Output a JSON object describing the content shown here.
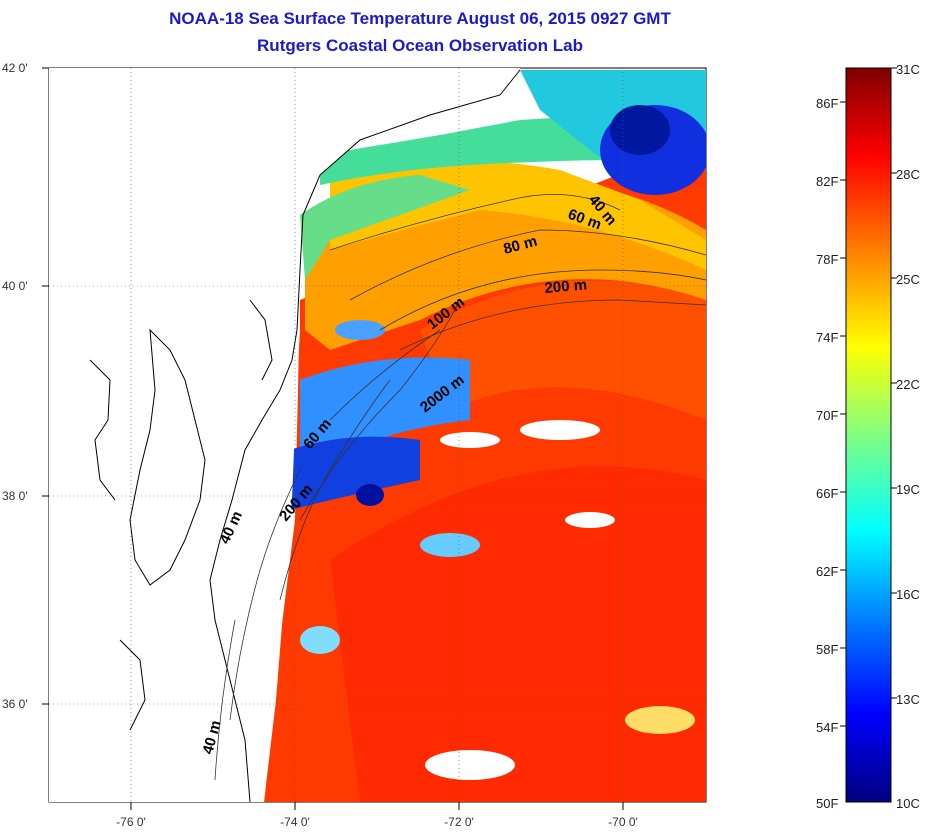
{
  "title": "NOAA-18 Sea Surface Temperature August 06, 2015 0927 GMT",
  "subtitle": "Rutgers Coastal Ocean Observation Lab",
  "lat_ticks": [
    {
      "label": "42 0'"
    },
    {
      "label": "40 0'"
    },
    {
      "label": "38 0'"
    },
    {
      "label": "36 0'"
    }
  ],
  "lon_ticks": [
    {
      "label": "-76 0'"
    },
    {
      "label": "-74 0'"
    },
    {
      "label": "-72 0'"
    },
    {
      "label": "-70 0'"
    }
  ],
  "contour_labels": [
    "40 m",
    "60 m",
    "80 m",
    "200 m",
    "100 m",
    "2000 m",
    "60 m",
    "200 m",
    "40 m",
    "40 m"
  ],
  "colorbar": {
    "fahrenheit": [
      "86F",
      "82F",
      "78F",
      "74F",
      "70F",
      "66F",
      "62F",
      "58F",
      "54F",
      "50F"
    ],
    "celsius": [
      "31C",
      "28C",
      "25C",
      "22C",
      "19C",
      "16C",
      "13C",
      "10C"
    ],
    "colors": [
      "#00007f",
      "#0000ff",
      "#0080ff",
      "#00ffff",
      "#80ff80",
      "#ffff00",
      "#ff8000",
      "#ff0000",
      "#7f0000"
    ]
  }
}
